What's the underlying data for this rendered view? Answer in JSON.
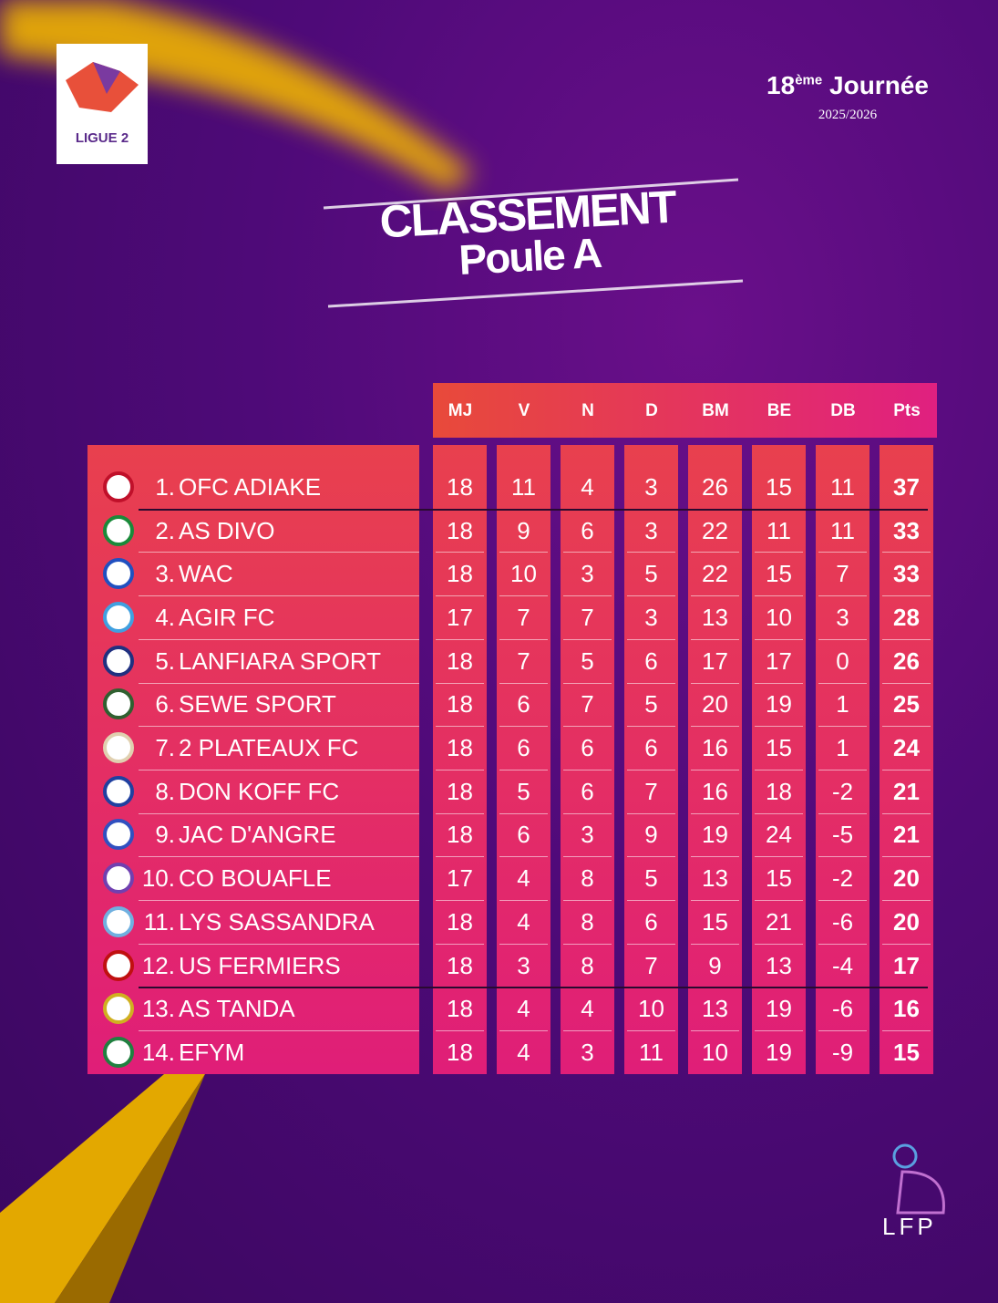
{
  "logo": {
    "text": "LIGUE 2"
  },
  "header": {
    "round_number": "18",
    "round_suffix": "ème",
    "round_word": "Journée",
    "season": "2025/2026"
  },
  "title": {
    "line1": "CLASSEMENT",
    "line2": "Poule A"
  },
  "table": {
    "columns": [
      "MJ",
      "V",
      "N",
      "D",
      "BM",
      "BE",
      "DB",
      "Pts"
    ],
    "rows": [
      {
        "rank": "1.",
        "team": "OFC ADIAKE",
        "stats": [
          18,
          11,
          4,
          3,
          26,
          15,
          11,
          37
        ]
      },
      {
        "rank": "2.",
        "team": "AS DIVO",
        "stats": [
          18,
          9,
          6,
          3,
          22,
          11,
          11,
          33
        ]
      },
      {
        "rank": "3.",
        "team": "WAC",
        "stats": [
          18,
          10,
          3,
          5,
          22,
          15,
          7,
          33
        ]
      },
      {
        "rank": "4.",
        "team": "AGIR FC",
        "stats": [
          17,
          7,
          7,
          3,
          13,
          10,
          3,
          28
        ]
      },
      {
        "rank": "5.",
        "team": "LANFIARA SPORT",
        "stats": [
          18,
          7,
          5,
          6,
          17,
          17,
          0,
          26
        ]
      },
      {
        "rank": "6.",
        "team": "SEWE SPORT",
        "stats": [
          18,
          6,
          7,
          5,
          20,
          19,
          1,
          25
        ]
      },
      {
        "rank": "7.",
        "team": "2 PLATEAUX FC",
        "stats": [
          18,
          6,
          6,
          6,
          16,
          15,
          1,
          24
        ]
      },
      {
        "rank": "8.",
        "team": "DON KOFF FC",
        "stats": [
          18,
          5,
          6,
          7,
          16,
          18,
          -2,
          21
        ]
      },
      {
        "rank": "9.",
        "team": "JAC D'ANGRE",
        "stats": [
          18,
          6,
          3,
          9,
          19,
          24,
          -5,
          21
        ]
      },
      {
        "rank": "10.",
        "team": "CO BOUAFLE",
        "stats": [
          17,
          4,
          8,
          5,
          13,
          15,
          -2,
          20
        ]
      },
      {
        "rank": "11.",
        "team": "LYS SASSANDRA",
        "stats": [
          18,
          4,
          8,
          6,
          15,
          21,
          -6,
          20
        ]
      },
      {
        "rank": "12.",
        "team": "US FERMIERS",
        "stats": [
          18,
          3,
          8,
          7,
          9,
          13,
          -4,
          17
        ]
      },
      {
        "rank": "13.",
        "team": "AS TANDA",
        "stats": [
          18,
          4,
          4,
          10,
          13,
          19,
          -6,
          16
        ]
      },
      {
        "rank": "14.",
        "team": "EFYM",
        "stats": [
          18,
          4,
          3,
          11,
          10,
          19,
          -9,
          15
        ]
      }
    ]
  },
  "footer": {
    "logo_text": "LFP"
  }
}
